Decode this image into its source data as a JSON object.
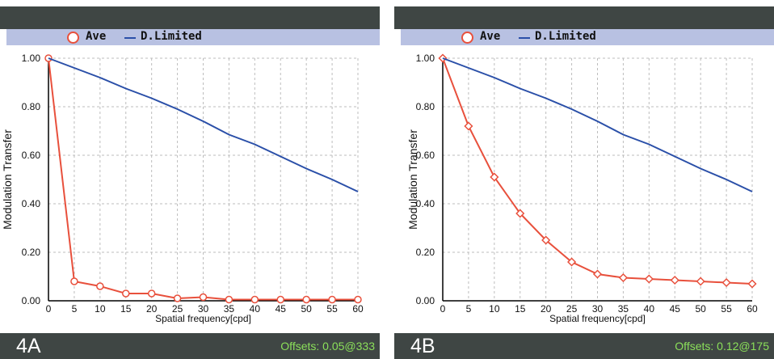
{
  "panels": [
    {
      "id": "A",
      "label": "4A",
      "offsets": "Offsets: 0.05@333",
      "legend": {
        "ave": "Ave",
        "dl": "D.Limited"
      }
    },
    {
      "id": "B",
      "label": "4B",
      "offsets": "Offsets: 0.12@175",
      "legend": {
        "ave": "Ave",
        "dl": "D.Limited"
      }
    }
  ],
  "colors": {
    "ave": "#e8503c",
    "dl": "#2a4fa8",
    "grid": "#bdbdbd",
    "bar": "#3f4644",
    "legend_bg": "#b8c1e2"
  },
  "chart_data": [
    {
      "type": "line",
      "xlabel": "Spatial frequency[cpd]",
      "ylabel": "Modulation Transfer",
      "xlim": [
        0,
        60
      ],
      "ylim": [
        0,
        1
      ],
      "x_ticks": [
        "0",
        "5",
        "10",
        "15",
        "20",
        "25",
        "30",
        "35",
        "40",
        "45",
        "50",
        "55",
        "60"
      ],
      "y_ticks": [
        "0.00",
        "0.20",
        "0.40",
        "0.60",
        "0.80",
        "1.00"
      ],
      "grid": true,
      "legend_position": "top",
      "x": [
        0,
        5,
        10,
        15,
        20,
        25,
        30,
        35,
        40,
        45,
        50,
        55,
        60
      ],
      "series": [
        {
          "name": "Ave",
          "marker": "circle",
          "values": [
            1.0,
            0.08,
            0.06,
            0.03,
            0.03,
            0.01,
            0.015,
            0.005,
            0.005,
            0.005,
            0.005,
            0.005,
            0.005
          ]
        },
        {
          "name": "D.Limited",
          "marker": "none",
          "values": [
            1.0,
            0.96,
            0.92,
            0.875,
            0.835,
            0.79,
            0.74,
            0.685,
            0.645,
            0.595,
            0.545,
            0.5,
            0.45
          ]
        }
      ]
    },
    {
      "type": "line",
      "xlabel": "Spatial frequency[cpd]",
      "ylabel": "Modulation Transfer",
      "xlim": [
        0,
        60
      ],
      "ylim": [
        0,
        1
      ],
      "x_ticks": [
        "0",
        "5",
        "10",
        "15",
        "20",
        "25",
        "30",
        "35",
        "40",
        "45",
        "50",
        "55",
        "60"
      ],
      "y_ticks": [
        "0.00",
        "0.20",
        "0.40",
        "0.60",
        "0.80",
        "1.00"
      ],
      "grid": true,
      "legend_position": "top",
      "x": [
        0,
        5,
        10,
        15,
        20,
        25,
        30,
        35,
        40,
        45,
        50,
        55,
        60
      ],
      "series": [
        {
          "name": "Ave",
          "marker": "diamond",
          "values": [
            1.0,
            0.72,
            0.51,
            0.36,
            0.25,
            0.16,
            0.11,
            0.095,
            0.09,
            0.085,
            0.08,
            0.075,
            0.07
          ]
        },
        {
          "name": "D.Limited",
          "marker": "none",
          "values": [
            1.0,
            0.96,
            0.92,
            0.875,
            0.835,
            0.79,
            0.74,
            0.685,
            0.645,
            0.595,
            0.545,
            0.5,
            0.45
          ]
        }
      ]
    }
  ]
}
